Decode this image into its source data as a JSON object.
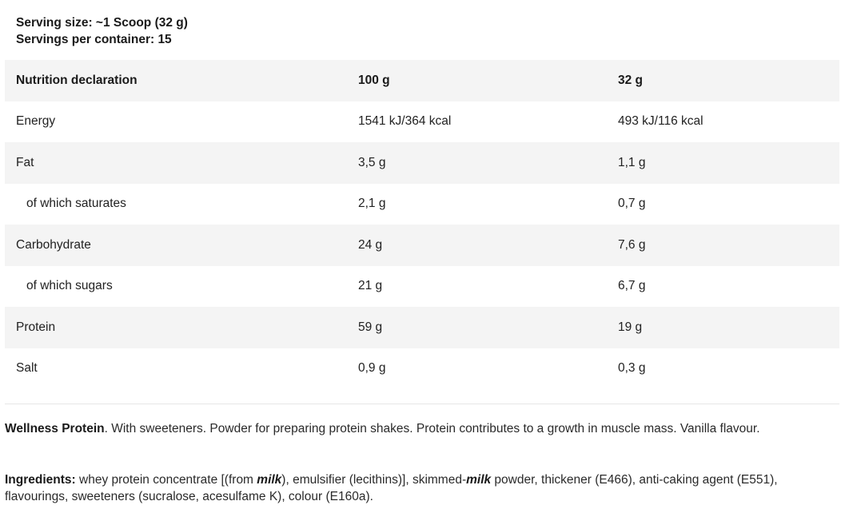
{
  "serving": {
    "size": "Serving size: ~1 Scoop (32 g)",
    "per_container": "Servings per container: 15"
  },
  "table": {
    "headers": [
      "Nutrition declaration",
      "100 g",
      "32 g"
    ],
    "rows": [
      {
        "label": "Energy",
        "per100": "1541 kJ/364 kcal",
        "perServing": "493 kJ/116 kcal"
      },
      {
        "label": "Fat",
        "per100": "3,5 g",
        "perServing": "1,1 g"
      },
      {
        "label": "of which saturates",
        "per100": "2,1 g",
        "perServing": "0,7 g"
      },
      {
        "label": "Carbohydrate",
        "per100": "24 g",
        "perServing": "7,6 g"
      },
      {
        "label": "of which sugars",
        "per100": "21 g",
        "perServing": "6,7 g"
      },
      {
        "label": "Protein",
        "per100": "59 g",
        "perServing": "19 g"
      },
      {
        "label": "Salt",
        "per100": "0,9 g",
        "perServing": "0,3 g"
      }
    ]
  },
  "description": {
    "product": "Wellness Protein",
    "text": ". With sweeteners. Powder for preparing protein shakes. Protein contributes to a growth in muscle mass. Vanilla flavour."
  },
  "ingredients": {
    "label": "Ingredients:",
    "part1": " whey protein concentrate [(from ",
    "allergen1": "milk",
    "part2": "), emulsifier (lecithins)], skimmed-",
    "allergen2": "milk",
    "part3": " powder, thickener (E466), anti-caking agent (E551), flavourings, sweeteners (sucralose, acesulfame K), colour (E160a)."
  }
}
